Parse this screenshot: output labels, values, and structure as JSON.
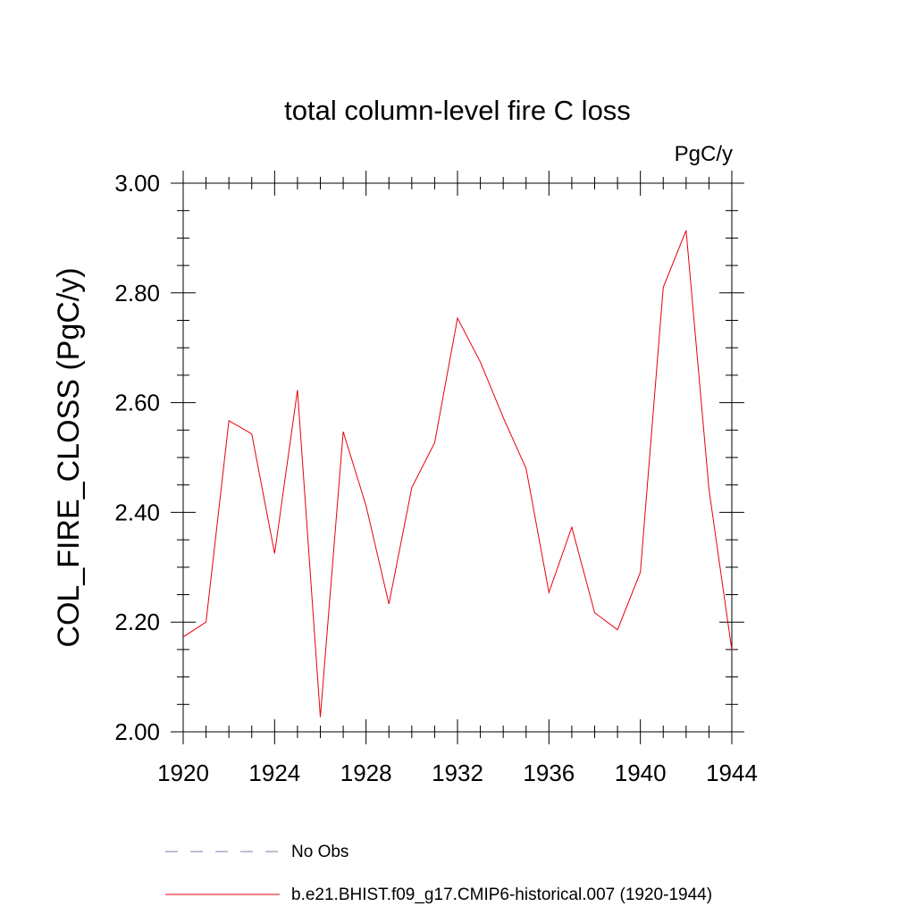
{
  "chart_data": {
    "type": "line",
    "title": "total column-level fire C loss",
    "units_label": "PgC/y",
    "xlabel": "",
    "ylabel": "COL_FIRE_CLOSS  (PgC/y)",
    "xlim": [
      1920,
      1944
    ],
    "ylim": [
      2.0,
      3.0
    ],
    "x_ticks": [
      1920,
      1924,
      1928,
      1932,
      1936,
      1940,
      1944
    ],
    "x_tick_labels": [
      "1920",
      "1924",
      "1928",
      "1932",
      "1936",
      "1940",
      "1944"
    ],
    "y_ticks": [
      2.0,
      2.2,
      2.4,
      2.6,
      2.8,
      3.0
    ],
    "y_tick_labels": [
      "2.00",
      "2.20",
      "2.40",
      "2.60",
      "2.80",
      "3.00"
    ],
    "grid": false,
    "legend_placement": "bottom",
    "series": [
      {
        "name": "b.e21.BHIST.f09_g17.CMIP6-historical.007 (1920-1944)",
        "color": "#e8000b",
        "style": "solid",
        "x": [
          1920,
          1921,
          1922,
          1923,
          1924,
          1925,
          1926,
          1927,
          1928,
          1929,
          1930,
          1931,
          1932,
          1933,
          1934,
          1935,
          1936,
          1937,
          1938,
          1939,
          1940,
          1941,
          1942,
          1943,
          1944
        ],
        "values": [
          2.173,
          2.2,
          2.567,
          2.543,
          2.325,
          2.623,
          2.027,
          2.547,
          2.412,
          2.233,
          2.445,
          2.527,
          2.754,
          2.674,
          2.573,
          2.48,
          2.254,
          2.373,
          2.217,
          2.186,
          2.291,
          2.81,
          2.914,
          2.442,
          2.149
        ]
      }
    ],
    "legend": [
      {
        "label": "No Obs",
        "color": "#7c7ca8",
        "style": "dashed"
      },
      {
        "label": "b.e21.BHIST.f09_g17.CMIP6-historical.007 (1920-1944)",
        "color": "#e8000b",
        "style": "solid"
      }
    ]
  }
}
